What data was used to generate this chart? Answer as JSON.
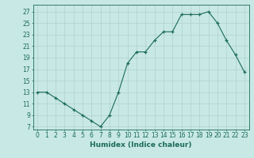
{
  "x": [
    0,
    1,
    2,
    3,
    4,
    5,
    6,
    7,
    8,
    9,
    10,
    11,
    12,
    13,
    14,
    15,
    16,
    17,
    18,
    19,
    20,
    21,
    22,
    23
  ],
  "y": [
    13,
    13,
    12,
    11,
    10,
    9,
    8,
    7,
    9,
    13,
    18,
    20,
    20,
    22,
    23.5,
    23.5,
    26.5,
    26.5,
    26.5,
    27,
    25,
    22,
    19.5,
    16.5
  ],
  "line_color": "#1a6b5a",
  "marker_color": "#1a6b5a",
  "bg_color": "#c8e8e5",
  "grid_color": "#b0d0cd",
  "xlabel": "Humidex (Indice chaleur)",
  "ylabel_ticks": [
    7,
    9,
    11,
    13,
    15,
    17,
    19,
    21,
    23,
    25,
    27
  ],
  "ylim": [
    6.5,
    28.2
  ],
  "xlim": [
    -0.5,
    23.5
  ],
  "axis_color": "#1a6b5a",
  "label_fontsize": 6.5,
  "tick_fontsize": 5.5
}
